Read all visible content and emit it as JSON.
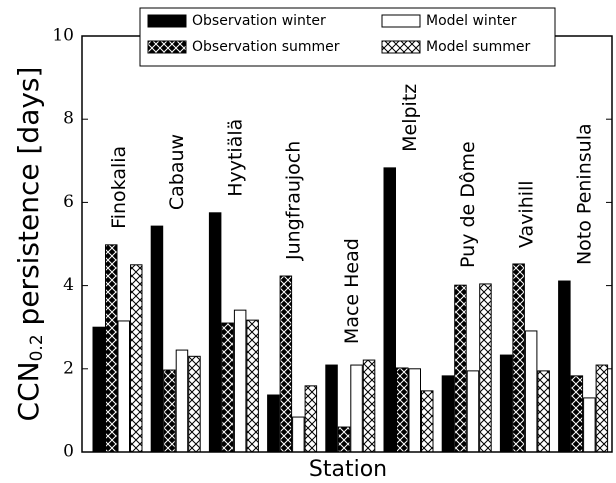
{
  "chart_data": {
    "type": "bar",
    "y_label": {
      "main": "CCN",
      "subscript": "0.2",
      "suffix": " persistence [days]"
    },
    "x_label": "Station",
    "categories": [
      "Finokalia",
      "Cabauw",
      "Hyytiälä",
      "Jungfraujoch",
      "Mace Head",
      "Melpitz",
      "Puy de Dôme",
      "Vavihill",
      "Noto Peninsula"
    ],
    "series": [
      {
        "name": "Observation winter",
        "color": "#000000",
        "hatch": "none",
        "values": [
          3.0,
          5.43,
          5.75,
          1.37,
          2.09,
          6.83,
          1.83,
          2.33,
          4.11
        ]
      },
      {
        "name": "Observation summer",
        "color": "#000000",
        "hatch": "x",
        "values": [
          4.98,
          1.97,
          3.1,
          4.23,
          0.6,
          2.02,
          4.01,
          4.52,
          1.83
        ]
      },
      {
        "name": "Model winter",
        "color": "#ffffff",
        "hatch": "none",
        "values": [
          3.15,
          2.45,
          3.41,
          0.84,
          2.09,
          2.0,
          1.95,
          2.91,
          1.3
        ]
      },
      {
        "name": "Model summer",
        "color": "#ffffff",
        "hatch": "x",
        "values": [
          4.5,
          2.3,
          3.17,
          1.59,
          2.21,
          1.47,
          4.04,
          1.95,
          2.09
        ]
      }
    ],
    "ylim": [
      0,
      10
    ],
    "yticks": [
      0,
      2,
      4,
      6,
      8,
      10
    ],
    "legend": "top"
  }
}
